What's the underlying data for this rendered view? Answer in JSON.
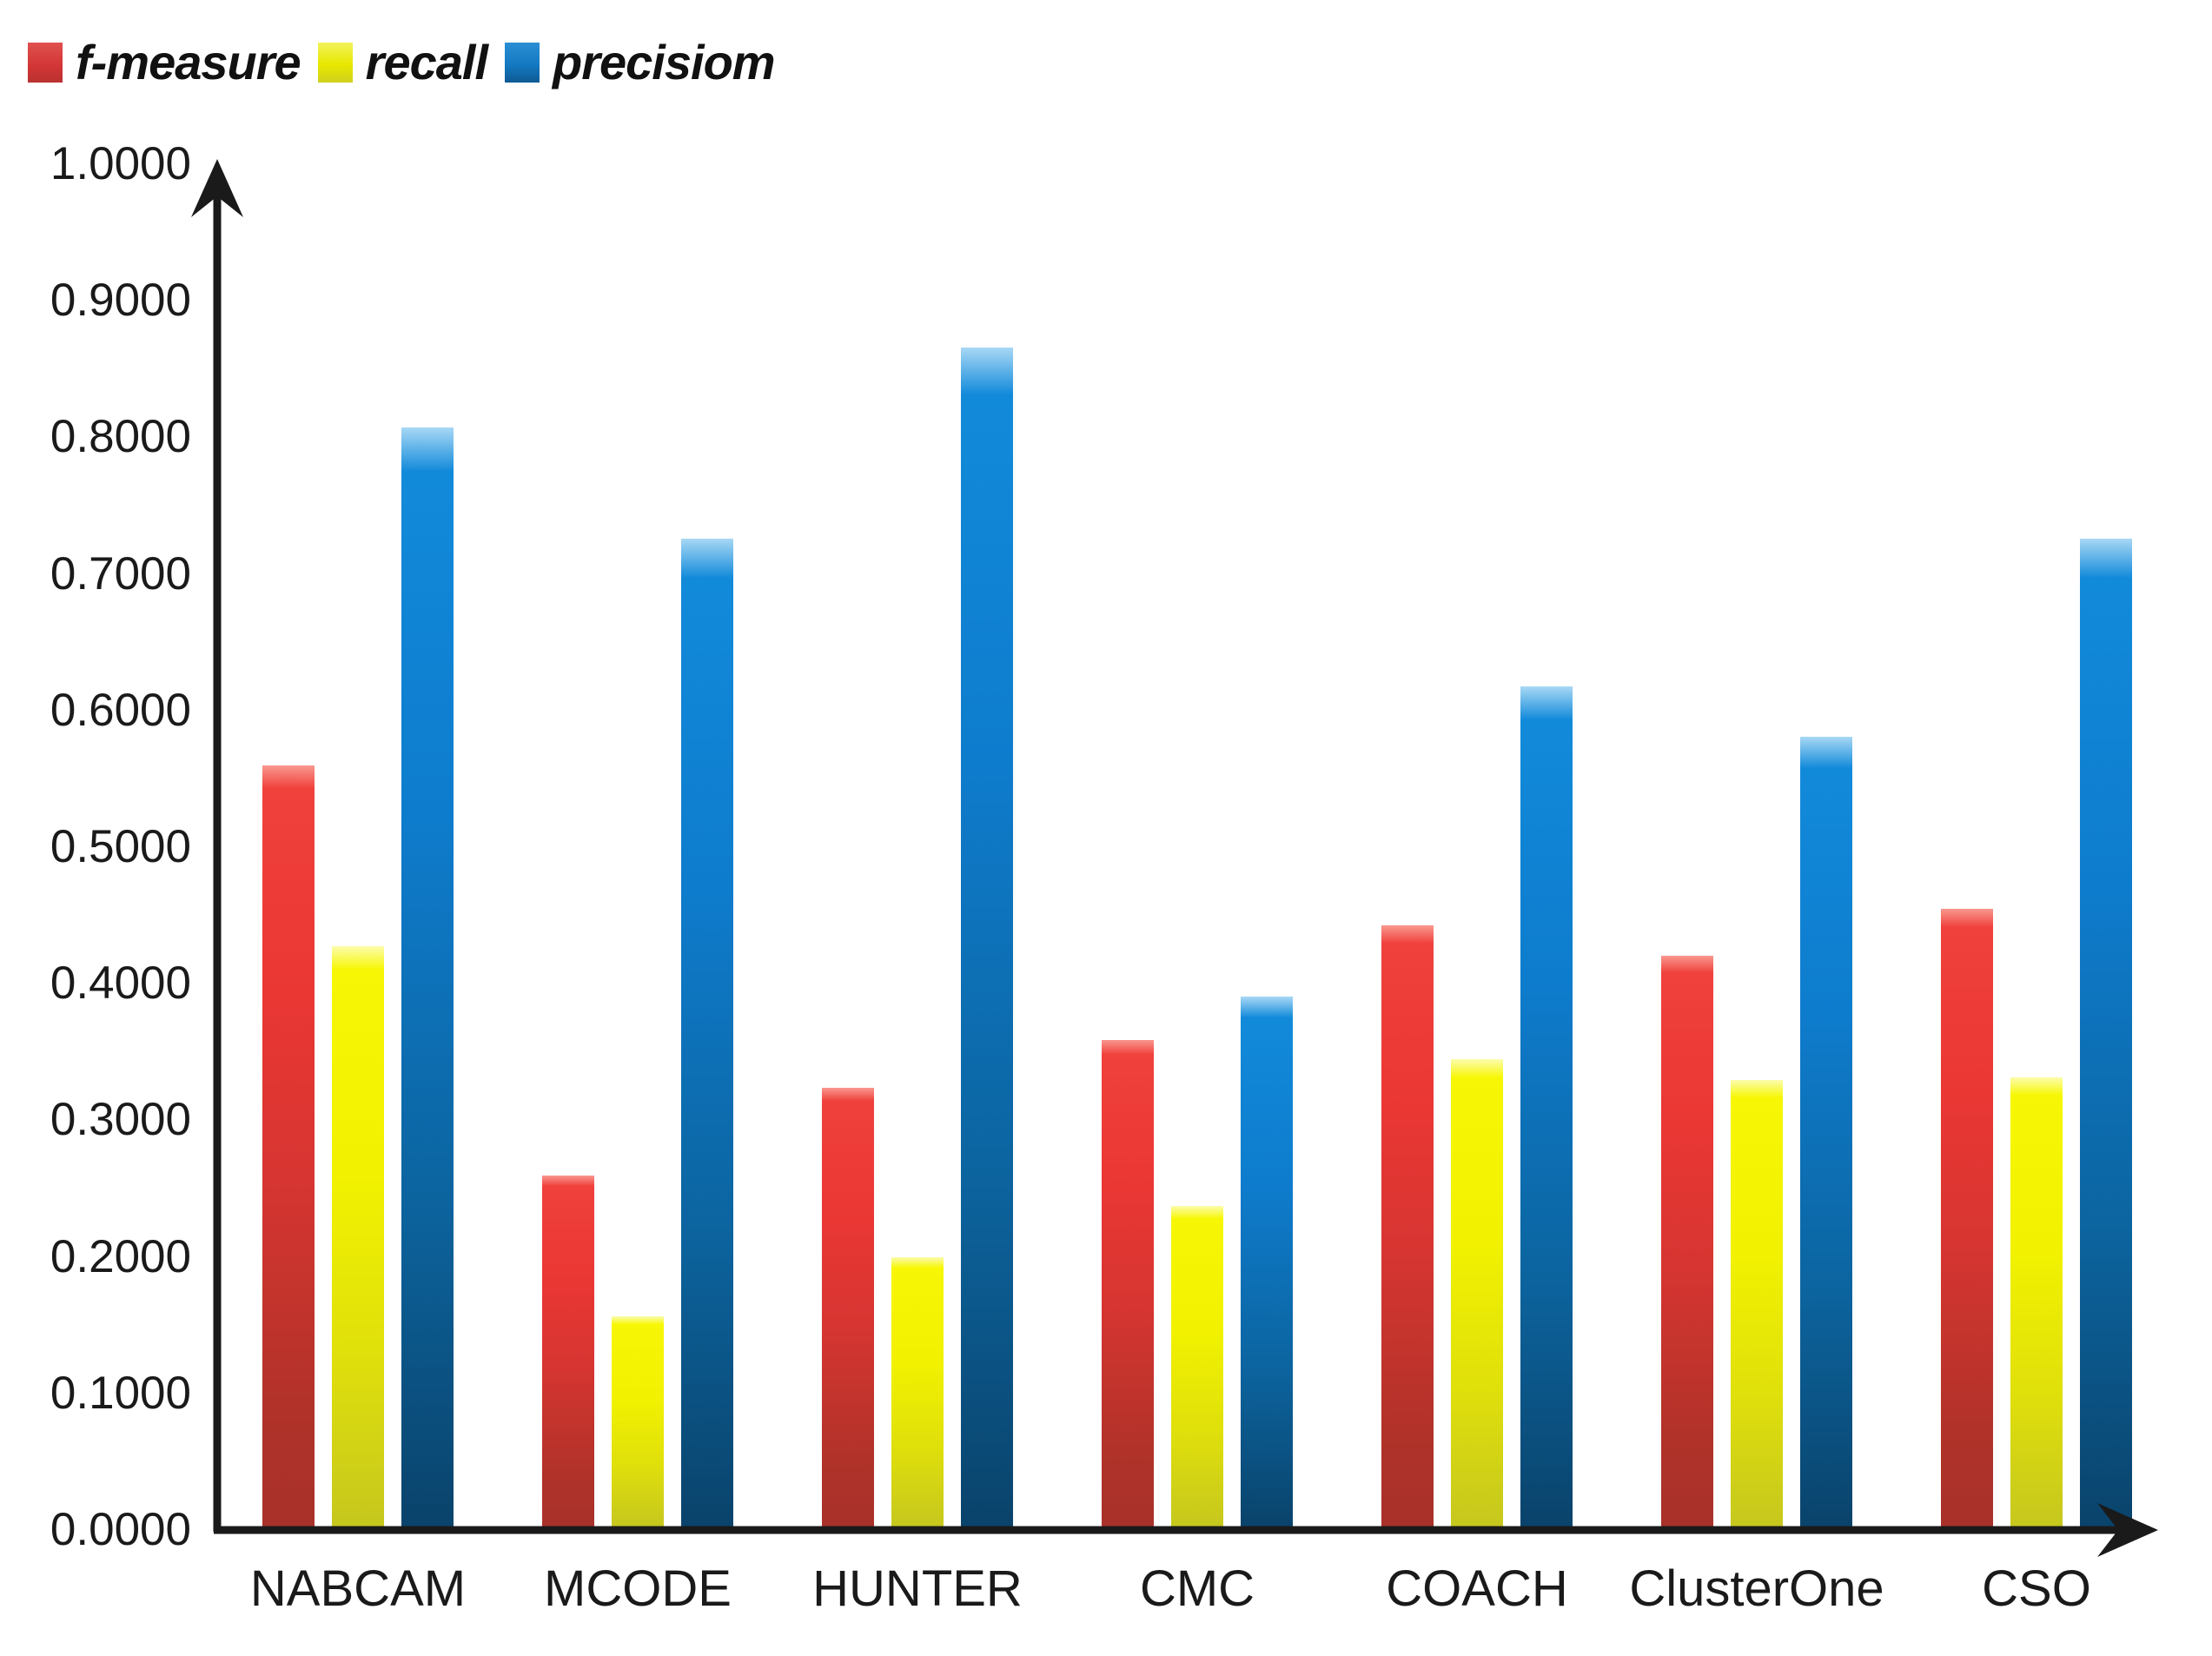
{
  "page": {
    "background": "#ffffff"
  },
  "legend": {
    "items": [
      {
        "label": "f-measure",
        "color": "#d23535"
      },
      {
        "label": "recall",
        "color": "#e8e800"
      },
      {
        "label": "precisiom",
        "color": "#1479c2"
      }
    ]
  },
  "chart_data": {
    "type": "bar",
    "title": "",
    "xlabel": "",
    "ylabel": "",
    "categories": [
      "NABCAM",
      "MCODE",
      "HUNTER",
      "CMC",
      "COACH",
      "ClusterOne",
      "CSO"
    ],
    "series": [
      {
        "name": "f-measure",
        "color": "#e23431",
        "values": [
          0.557,
          0.257,
          0.321,
          0.356,
          0.44,
          0.418,
          0.452
        ]
      },
      {
        "name": "recall",
        "color": "#f2f200",
        "values": [
          0.425,
          0.154,
          0.197,
          0.235,
          0.342,
          0.327,
          0.329
        ]
      },
      {
        "name": "precisiom",
        "color": "#0e7ccd",
        "values": [
          0.805,
          0.723,
          0.863,
          0.388,
          0.615,
          0.578,
          0.723
        ]
      }
    ],
    "ylim": [
      0,
      1
    ],
    "ytick_labels": [
      "0.0000",
      "0.1000",
      "0.2000",
      "0.3000",
      "0.4000",
      "0.5000",
      "0.6000",
      "0.7000",
      "0.8000",
      "0.9000",
      "1.0000"
    ],
    "grid": false,
    "legend_position": "top-left",
    "bar_order": [
      "f-measure",
      "recall",
      "precisiom"
    ]
  }
}
